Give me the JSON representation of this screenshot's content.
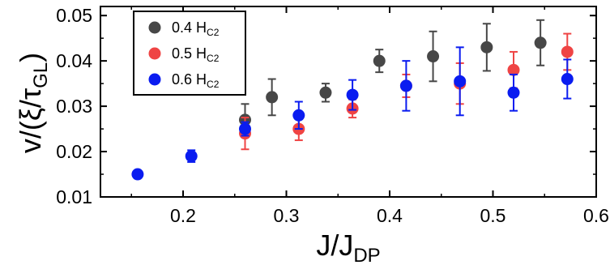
{
  "chart_data": {
    "type": "scatter",
    "xlabel": "J/J",
    "xlabel_sub": "DP",
    "ylabel": "v/(ξ/τ",
    "ylabel_sub": "GL",
    "ylabel_close": ")",
    "xlim": [
      0.12,
      0.6
    ],
    "ylim": [
      0.01,
      0.052
    ],
    "xticks": [
      0.2,
      0.3,
      0.4,
      0.5,
      0.6
    ],
    "xtick_labels": [
      "0.2",
      "0.3",
      "0.4",
      "0.5",
      "0.6"
    ],
    "yticks": [
      0.01,
      0.02,
      0.03,
      0.04,
      0.05
    ],
    "ytick_labels": [
      "0.01",
      "0.02",
      "0.03",
      "0.04",
      "0.05"
    ],
    "grid": false,
    "legend_position": "top-left",
    "series": [
      {
        "name": "0.4 H",
        "name_sub": "C2",
        "color": "#474747",
        "points": [
          {
            "x": 0.26,
            "y": 0.027,
            "err": 0.0035
          },
          {
            "x": 0.286,
            "y": 0.032,
            "err": 0.004
          },
          {
            "x": 0.338,
            "y": 0.033,
            "err": 0.002
          },
          {
            "x": 0.39,
            "y": 0.04,
            "err": 0.0025
          },
          {
            "x": 0.442,
            "y": 0.041,
            "err": 0.0055
          },
          {
            "x": 0.494,
            "y": 0.043,
            "err": 0.0052
          },
          {
            "x": 0.546,
            "y": 0.044,
            "err": 0.005
          }
        ]
      },
      {
        "name": "0.5 H",
        "name_sub": "C2",
        "color": "#ef4444",
        "points": [
          {
            "x": 0.26,
            "y": 0.024,
            "err": 0.0035
          },
          {
            "x": 0.312,
            "y": 0.025,
            "err": 0.0025
          },
          {
            "x": 0.364,
            "y": 0.0295,
            "err": 0.002
          },
          {
            "x": 0.416,
            "y": 0.0345,
            "err": 0.0025
          },
          {
            "x": 0.468,
            "y": 0.035,
            "err": 0.0045
          },
          {
            "x": 0.52,
            "y": 0.038,
            "err": 0.004
          },
          {
            "x": 0.572,
            "y": 0.042,
            "err": 0.004
          }
        ]
      },
      {
        "name": "0.6 H",
        "name_sub": "C2",
        "color": "#0a1cf0",
        "points": [
          {
            "x": 0.156,
            "y": 0.015,
            "err": 0.0008
          },
          {
            "x": 0.208,
            "y": 0.019,
            "err": 0.0013
          },
          {
            "x": 0.26,
            "y": 0.025,
            "err": 0.0015
          },
          {
            "x": 0.312,
            "y": 0.028,
            "err": 0.003
          },
          {
            "x": 0.364,
            "y": 0.0325,
            "err": 0.0033
          },
          {
            "x": 0.416,
            "y": 0.0345,
            "err": 0.0055
          },
          {
            "x": 0.468,
            "y": 0.0355,
            "err": 0.0075
          },
          {
            "x": 0.52,
            "y": 0.033,
            "err": 0.004
          },
          {
            "x": 0.572,
            "y": 0.036,
            "err": 0.0043
          }
        ]
      }
    ]
  }
}
